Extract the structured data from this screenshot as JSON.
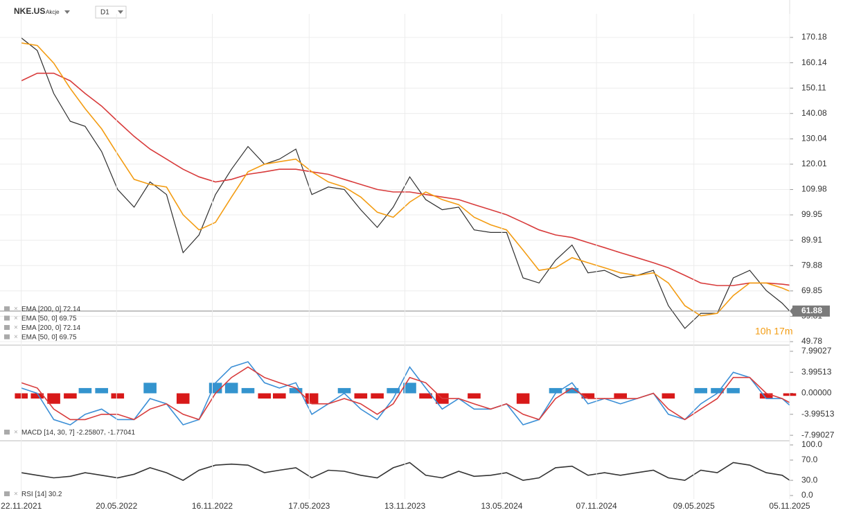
{
  "header": {
    "symbol": "NKE.US",
    "kind": "Akcje",
    "interval": "D1"
  },
  "chart_data": [
    {
      "type": "line",
      "countdown": "10h 17m",
      "grid": true,
      "xlim": [
        "13.10.2021",
        "05.11.2025"
      ],
      "x": [
        "22.11.2021",
        "22.12.2021",
        "22.01.2022",
        "22.02.2022",
        "22.03.2022",
        "22.04.2022",
        "22.05.2022",
        "22.06.2022",
        "22.07.2022",
        "22.08.2022",
        "22.09.2022",
        "22.10.2022",
        "22.11.2022",
        "22.12.2022",
        "22.01.2023",
        "22.02.2023",
        "22.03.2023",
        "22.04.2023",
        "22.05.2023",
        "22.06.2023",
        "22.07.2023",
        "22.08.2023",
        "22.09.2023",
        "22.10.2023",
        "22.11.2023",
        "22.12.2023",
        "22.01.2024",
        "22.02.2024",
        "22.03.2024",
        "22.04.2024",
        "22.05.2024",
        "22.06.2024",
        "22.07.2024",
        "22.08.2024",
        "22.09.2024",
        "22.10.2024",
        "22.11.2024",
        "22.12.2024",
        "22.01.2025",
        "22.02.2025",
        "22.03.2025",
        "22.04.2025",
        "22.05.2025",
        "22.06.2025",
        "22.07.2025",
        "22.08.2025",
        "22.09.2025",
        "22.10.2025",
        "05.11.2025"
      ],
      "ylim": [
        48.4,
        179.5
      ],
      "yticks": [
        170.18,
        160.14,
        150.11,
        140.08,
        130.04,
        120.01,
        109.98,
        99.95,
        89.91,
        79.88,
        69.85,
        59.81,
        49.78
      ],
      "series": [
        {
          "color": "#2e2e2e",
          "values": [
            170,
            165,
            148,
            137,
            135,
            125,
            110,
            103,
            113,
            108,
            85,
            92,
            108,
            118,
            127,
            120,
            122,
            126,
            108,
            111,
            110,
            102,
            95,
            103,
            115,
            106,
            102,
            103,
            94,
            93,
            93,
            75,
            73,
            82,
            88,
            77,
            78,
            75,
            76,
            78,
            64,
            55,
            61,
            61,
            75,
            78,
            70,
            65,
            61.88
          ]
        },
        {
          "name": "EMA [200, 0]",
          "color": "#d83b3b",
          "values": [
            153,
            156,
            156,
            153,
            148,
            143,
            137,
            131,
            126,
            122,
            118,
            115,
            113,
            114,
            116,
            117,
            118,
            118,
            117,
            116,
            114,
            112,
            110,
            109,
            109,
            108,
            107,
            106,
            104,
            102,
            100,
            97,
            94,
            92,
            91,
            89,
            87,
            85,
            83,
            81,
            79,
            76,
            73,
            72,
            72,
            73,
            73,
            72.5,
            72.14
          ]
        },
        {
          "name": "EMA [50, 0]",
          "color": "#f39c12",
          "values": [
            168,
            167,
            160,
            150,
            142,
            134,
            124,
            114,
            112,
            111,
            100,
            94,
            97,
            107,
            117,
            120,
            121,
            122,
            117,
            113,
            111,
            107,
            101,
            99,
            105,
            109,
            106,
            104,
            99,
            96,
            94,
            86,
            78,
            79,
            83,
            81,
            79,
            77,
            76,
            77,
            73,
            64,
            60,
            61,
            68,
            73,
            73,
            71,
            69.75
          ]
        }
      ]
    },
    {
      "type": "macd",
      "grid": false,
      "xlim": [
        "13.10.2021",
        "05.11.2025"
      ],
      "x": [
        "22.11.2021",
        "22.12.2021",
        "22.01.2022",
        "22.02.2022",
        "22.03.2022",
        "22.04.2022",
        "22.05.2022",
        "22.06.2022",
        "22.07.2022",
        "22.08.2022",
        "22.09.2022",
        "22.10.2022",
        "22.11.2022",
        "22.12.2022",
        "22.01.2023",
        "22.02.2023",
        "22.03.2023",
        "22.04.2023",
        "22.05.2023",
        "22.06.2023",
        "22.07.2023",
        "22.08.2023",
        "22.09.2023",
        "22.10.2023",
        "22.11.2023",
        "22.12.2023",
        "22.01.2024",
        "22.02.2024",
        "22.03.2024",
        "22.04.2024",
        "22.05.2024",
        "22.06.2024",
        "22.07.2024",
        "22.08.2024",
        "22.09.2024",
        "22.10.2024",
        "22.11.2024",
        "22.12.2024",
        "22.01.2025",
        "22.02.2025",
        "22.03.2025",
        "22.04.2025",
        "22.05.2025",
        "22.06.2025",
        "22.07.2025",
        "22.08.2025",
        "22.09.2025",
        "22.10.2025",
        "05.11.2025"
      ],
      "ylim": [
        -8.9,
        8.9
      ],
      "yticks": [
        7.99027,
        3.99513,
        {
          "value": 0,
          "label": "0.00000"
        },
        -3.99513,
        -7.99027
      ],
      "histogram": {
        "positive_color": "#1e88c9",
        "negative_color": "#d40000",
        "values": [
          -1,
          -1,
          -2,
          -1,
          1,
          1,
          -1,
          0,
          2,
          0,
          -2,
          0,
          2,
          2,
          1,
          -1,
          -1,
          1,
          -2,
          0,
          1,
          -1,
          -1,
          1,
          2,
          -1,
          -2,
          0,
          -1,
          0,
          0,
          -2,
          0,
          1,
          1,
          -1,
          0,
          -1,
          0,
          0,
          -1,
          0,
          1,
          1,
          1,
          0,
          -1,
          0,
          -0.49
        ]
      },
      "series": [
        {
          "name": "MACD [14, 30, 7]",
          "color": "#3b8fd6",
          "values": [
            1,
            0,
            -5,
            -6,
            -4,
            -3,
            -5,
            -5,
            -1,
            -2,
            -6,
            -5,
            2,
            5,
            6,
            2,
            1,
            2,
            -4,
            -2,
            0,
            -3,
            -5,
            -1,
            5,
            1,
            -3,
            -1,
            -3,
            -3,
            -2,
            -6,
            -5,
            0,
            2,
            -2,
            -1,
            -2,
            -1,
            0,
            -4,
            -5,
            -2,
            0,
            4,
            3,
            -1,
            -1,
            -2.25807
          ]
        },
        {
          "color": "#d83b3b",
          "values": [
            2,
            1,
            -3,
            -5,
            -5,
            -4,
            -4,
            -5,
            -3,
            -2,
            -4,
            -5,
            0,
            3,
            5,
            3,
            2,
            1,
            -2,
            -2,
            -1,
            -2,
            -4,
            -2,
            3,
            2,
            -1,
            -1,
            -2,
            -3,
            -2,
            -4,
            -5,
            -1,
            1,
            -1,
            -1,
            -1,
            -1,
            0,
            -3,
            -5,
            -3,
            -1,
            3,
            3,
            0,
            -1,
            -1.77041
          ]
        }
      ]
    },
    {
      "type": "line",
      "grid": false,
      "xlim": [
        "13.10.2021",
        "05.11.2025"
      ],
      "x": [
        "22.11.2021",
        "22.12.2021",
        "22.01.2022",
        "22.02.2022",
        "22.03.2022",
        "22.04.2022",
        "22.05.2022",
        "22.06.2022",
        "22.07.2022",
        "22.08.2022",
        "22.09.2022",
        "22.10.2022",
        "22.11.2022",
        "22.12.2022",
        "22.01.2023",
        "22.02.2023",
        "22.03.2023",
        "22.04.2023",
        "22.05.2023",
        "22.06.2023",
        "22.07.2023",
        "22.08.2023",
        "22.09.2023",
        "22.10.2023",
        "22.11.2023",
        "22.12.2023",
        "22.01.2024",
        "22.02.2024",
        "22.03.2024",
        "22.04.2024",
        "22.05.2024",
        "22.06.2024",
        "22.07.2024",
        "22.08.2024",
        "22.09.2024",
        "22.10.2024",
        "22.11.2024",
        "22.12.2024",
        "22.01.2025",
        "22.02.2025",
        "22.03.2025",
        "22.04.2025",
        "22.05.2025",
        "22.06.2025",
        "22.07.2025",
        "22.08.2025",
        "22.09.2025",
        "22.10.2025",
        "05.11.2025"
      ],
      "ylim": [
        0,
        100
      ],
      "yticks": [
        {
          "value": 100,
          "label": "100.0"
        },
        {
          "value": 70,
          "label": "70.0"
        },
        {
          "value": 30,
          "label": "30.0"
        },
        {
          "value": 0,
          "label": "0.0"
        }
      ],
      "xticks": [
        "22.11.2021",
        "20.05.2022",
        "16.11.2022",
        "17.05.2023",
        "13.11.2023",
        "13.05.2024",
        "07.11.2024",
        "09.05.2025",
        "05.11.2025"
      ],
      "series": [
        {
          "name": "RSI [14]",
          "color": "#333333",
          "values": [
            45,
            40,
            35,
            38,
            45,
            40,
            35,
            42,
            55,
            45,
            30,
            50,
            60,
            62,
            60,
            45,
            50,
            55,
            35,
            50,
            48,
            40,
            35,
            55,
            65,
            40,
            35,
            48,
            38,
            40,
            45,
            30,
            35,
            55,
            58,
            40,
            45,
            40,
            45,
            50,
            35,
            30,
            50,
            45,
            65,
            60,
            45,
            40,
            30.2
          ]
        }
      ]
    }
  ]
}
